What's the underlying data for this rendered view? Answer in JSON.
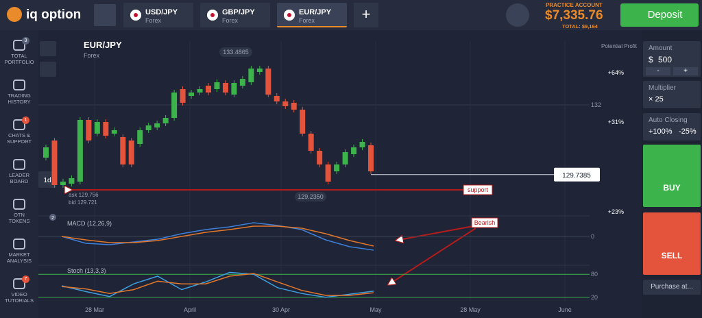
{
  "header": {
    "logo": "iq option",
    "tabs": [
      {
        "pair": "USD/JPY",
        "market": "Forex"
      },
      {
        "pair": "GBP/JPY",
        "market": "Forex"
      },
      {
        "pair": "EUR/JPY",
        "market": "Forex"
      }
    ],
    "add_tab": "+",
    "account_type": "PRACTICE ACCOUNT",
    "balance": "$7,335.76",
    "total": "TOTAL: $9,164",
    "deposit": "Deposit"
  },
  "sidebar": [
    {
      "label": "TOTAL PORTFOLIO",
      "badge": "3"
    },
    {
      "label": "TRADING HISTORY"
    },
    {
      "label": "CHATS & SUPPORT",
      "badge": "1"
    },
    {
      "label": "LEADER BOARD"
    },
    {
      "label": "OTN TOKENS"
    },
    {
      "label": "MARKET ANALYSIS"
    },
    {
      "label": "VIDEO TUTORIALS",
      "badge": "7"
    }
  ],
  "asset": {
    "pair": "EUR/JPY",
    "market": "Forex"
  },
  "tools": {
    "period": "1d",
    "badge": "2"
  },
  "trade_panel": {
    "amount_title": "Amount",
    "currency": "$",
    "amount": "500",
    "minus": "-",
    "plus": "+",
    "multiplier_title": "Multiplier",
    "multiplier": "× 25",
    "auto_closing_title": "Auto Closing",
    "take_profit": "+100%",
    "stop_loss": "-25%",
    "buy": "BUY",
    "sell": "SELL",
    "purchase": "Purchase at..."
  },
  "chart_data": {
    "type": "candlestick",
    "up_color": "#3cb44b",
    "down_color": "#e4533b",
    "open": [
      130.289,
      130.844,
      129.4,
      129.444,
      129.511,
      131.511,
      131.067,
      131.444,
      131.067,
      130.956,
      130.844,
      130.733,
      131.178,
      131.267,
      131.4,
      131.578,
      132.511,
      132.289,
      132.4,
      132.622,
      132.511,
      132.711,
      132.333,
      132.622,
      132.733,
      133.067,
      133.178,
      132.289,
      132.111,
      132.067,
      131.844,
      131.067,
      130.511,
      130.067,
      129.844,
      130.067,
      130.4,
      130.622,
      130.689
    ],
    "close": [
      130.622,
      129.4,
      129.511,
      129.622,
      131.511,
      130.844,
      131.444,
      131.0,
      131.178,
      130.067,
      130.067,
      131.178,
      131.333,
      131.4,
      131.578,
      132.4,
      132.067,
      132.4,
      132.511,
      132.4,
      132.733,
      132.4,
      132.711,
      132.844,
      133.178,
      133.178,
      132.333,
      132.111,
      131.956,
      131.844,
      131.067,
      130.511,
      130.067,
      129.511,
      130.067,
      130.467,
      130.622,
      130.8,
      129.844
    ],
    "ylim": [
      128.844,
      134.067
    ],
    "yticks": [
      132
    ],
    "current_price": 129.7385,
    "max_label": 133.4865,
    "min_label": {
      "value": 129.235,
      "label": "129.2350"
    },
    "ask": "ask 129.756",
    "bid": "bid 129.721",
    "x_labels": [
      "28 Mar",
      "April",
      "30 Apr",
      "May",
      "28 May",
      "June"
    ],
    "annotations": {
      "support": "support",
      "bearish": "Bearish"
    },
    "potential_profit": {
      "title": "Potential Profit",
      "levels": [
        "+64%",
        "+31%",
        "+23%"
      ]
    },
    "macd": {
      "title": "MACD (12,26,9)",
      "ylim": [
        -0.25,
        0.25
      ],
      "yticks": [
        0
      ],
      "series": [
        {
          "color": "#3d7fd8",
          "values": [
            0.0,
            -0.1,
            -0.12,
            -0.08,
            -0.04,
            0.04,
            0.1,
            0.14,
            0.2,
            0.16,
            0.1,
            -0.05,
            -0.15,
            -0.2
          ]
        },
        {
          "color": "#e3772b",
          "values": [
            0.0,
            -0.05,
            -0.09,
            -0.09,
            -0.06,
            0.0,
            0.06,
            0.1,
            0.15,
            0.15,
            0.12,
            0.04,
            -0.06,
            -0.14
          ]
        }
      ]
    },
    "stoch": {
      "title": "Stoch (13,3,3)",
      "ylim": [
        0,
        100
      ],
      "yticks": [
        80,
        20
      ],
      "series": [
        {
          "color": "#3d9ee0",
          "values": [
            50,
            35,
            22,
            55,
            75,
            40,
            60,
            85,
            80,
            45,
            30,
            20,
            28,
            36
          ]
        },
        {
          "color": "#e3772b",
          "values": [
            48,
            42,
            30,
            40,
            62,
            55,
            55,
            75,
            82,
            60,
            38,
            25,
            25,
            32
          ]
        }
      ]
    }
  }
}
